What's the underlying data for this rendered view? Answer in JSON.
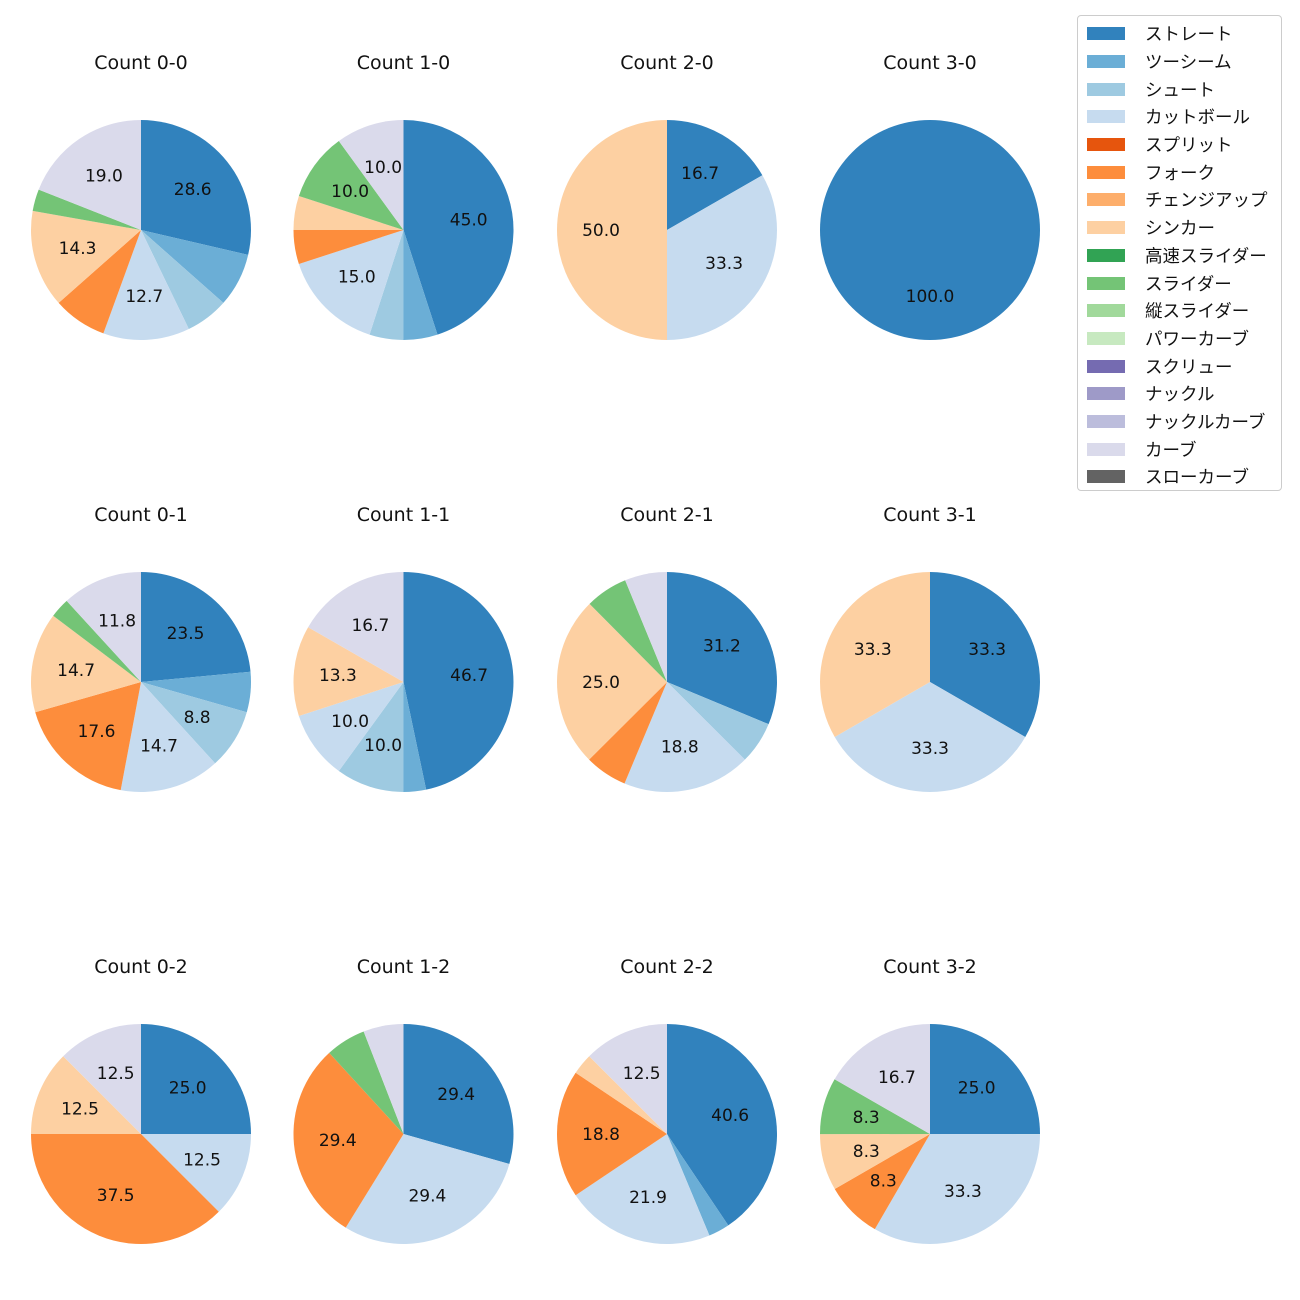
{
  "chart_data": {
    "type": "pie",
    "legend_position": "top-right",
    "legend": [
      {
        "label": "ストレート",
        "color": "#3182bd"
      },
      {
        "label": "ツーシーム",
        "color": "#6baed6"
      },
      {
        "label": "シュート",
        "color": "#9ecae1"
      },
      {
        "label": "カットボール",
        "color": "#c6dbef"
      },
      {
        "label": "スプリット",
        "color": "#e6550d"
      },
      {
        "label": "フォーク",
        "color": "#fd8d3c"
      },
      {
        "label": "チェンジアップ",
        "color": "#fdae6b"
      },
      {
        "label": "シンカー",
        "color": "#fdd0a2"
      },
      {
        "label": "高速スライダー",
        "color": "#31a354"
      },
      {
        "label": "スライダー",
        "color": "#74c476"
      },
      {
        "label": "縦スライダー",
        "color": "#a1d99b"
      },
      {
        "label": "パワーカーブ",
        "color": "#c7e9c0"
      },
      {
        "label": "スクリュー",
        "color": "#756bb1"
      },
      {
        "label": "ナックル",
        "color": "#9e9ac8"
      },
      {
        "label": "ナックルカーブ",
        "color": "#bcbddc"
      },
      {
        "label": "カーブ",
        "color": "#dadaeb"
      },
      {
        "label": "スローカーブ",
        "color": "#636363"
      }
    ],
    "pies": [
      {
        "title": "Count 0-0",
        "slices": [
          {
            "pitch": "ストレート",
            "value": 28.6,
            "label": "28.6"
          },
          {
            "pitch": "ツーシーム",
            "value": 7.9
          },
          {
            "pitch": "シュート",
            "value": 6.3
          },
          {
            "pitch": "カットボール",
            "value": 12.7,
            "label": "12.7"
          },
          {
            "pitch": "フォーク",
            "value": 7.9
          },
          {
            "pitch": "シンカー",
            "value": 14.3,
            "label": "14.3"
          },
          {
            "pitch": "スライダー",
            "value": 3.2
          },
          {
            "pitch": "カーブ",
            "value": 19.0,
            "label": "19.0"
          }
        ]
      },
      {
        "title": "Count 1-0",
        "slices": [
          {
            "pitch": "ストレート",
            "value": 45.0,
            "label": "45.0"
          },
          {
            "pitch": "ツーシーム",
            "value": 5.0
          },
          {
            "pitch": "シュート",
            "value": 5.0
          },
          {
            "pitch": "カットボール",
            "value": 15.0,
            "label": "15.0"
          },
          {
            "pitch": "フォーク",
            "value": 5.0
          },
          {
            "pitch": "シンカー",
            "value": 5.0
          },
          {
            "pitch": "スライダー",
            "value": 10.0,
            "label": "10.0"
          },
          {
            "pitch": "カーブ",
            "value": 10.0,
            "label": "10.0"
          }
        ]
      },
      {
        "title": "Count 2-0",
        "slices": [
          {
            "pitch": "ストレート",
            "value": 16.7,
            "label": "16.7"
          },
          {
            "pitch": "カットボール",
            "value": 33.3,
            "label": "33.3"
          },
          {
            "pitch": "シンカー",
            "value": 50.0,
            "label": "50.0"
          }
        ]
      },
      {
        "title": "Count 3-0",
        "slices": [
          {
            "pitch": "ストレート",
            "value": 100.0,
            "label": "100.0"
          }
        ]
      },
      {
        "title": "Count 0-1",
        "slices": [
          {
            "pitch": "ストレート",
            "value": 23.5,
            "label": "23.5"
          },
          {
            "pitch": "ツーシーム",
            "value": 5.9
          },
          {
            "pitch": "シュート",
            "value": 8.8,
            "label": "8.8"
          },
          {
            "pitch": "カットボール",
            "value": 14.7,
            "label": "14.7"
          },
          {
            "pitch": "フォーク",
            "value": 17.6,
            "label": "17.6"
          },
          {
            "pitch": "シンカー",
            "value": 14.7,
            "label": "14.7"
          },
          {
            "pitch": "スライダー",
            "value": 2.9
          },
          {
            "pitch": "カーブ",
            "value": 11.8,
            "label": "11.8"
          }
        ]
      },
      {
        "title": "Count 1-1",
        "slices": [
          {
            "pitch": "ストレート",
            "value": 46.7,
            "label": "46.7"
          },
          {
            "pitch": "ツーシーム",
            "value": 3.3
          },
          {
            "pitch": "シュート",
            "value": 10.0,
            "label": "10.0"
          },
          {
            "pitch": "カットボール",
            "value": 10.0,
            "label": "10.0"
          },
          {
            "pitch": "シンカー",
            "value": 13.3,
            "label": "13.3"
          },
          {
            "pitch": "カーブ",
            "value": 16.7,
            "label": "16.7"
          }
        ]
      },
      {
        "title": "Count 2-1",
        "slices": [
          {
            "pitch": "ストレート",
            "value": 31.2,
            "label": "31.2"
          },
          {
            "pitch": "シュート",
            "value": 6.2
          },
          {
            "pitch": "カットボール",
            "value": 18.8,
            "label": "18.8"
          },
          {
            "pitch": "フォーク",
            "value": 6.2
          },
          {
            "pitch": "シンカー",
            "value": 25.0,
            "label": "25.0"
          },
          {
            "pitch": "スライダー",
            "value": 6.2
          },
          {
            "pitch": "カーブ",
            "value": 6.2
          }
        ]
      },
      {
        "title": "Count 3-1",
        "slices": [
          {
            "pitch": "ストレート",
            "value": 33.3,
            "label": "33.3"
          },
          {
            "pitch": "カットボール",
            "value": 33.3,
            "label": "33.3"
          },
          {
            "pitch": "シンカー",
            "value": 33.3,
            "label": "33.3"
          }
        ]
      },
      {
        "title": "Count 0-2",
        "slices": [
          {
            "pitch": "ストレート",
            "value": 25.0,
            "label": "25.0"
          },
          {
            "pitch": "カットボール",
            "value": 12.5,
            "label": "12.5"
          },
          {
            "pitch": "フォーク",
            "value": 37.5,
            "label": "37.5"
          },
          {
            "pitch": "シンカー",
            "value": 12.5,
            "label": "12.5"
          },
          {
            "pitch": "カーブ",
            "value": 12.5,
            "label": "12.5"
          }
        ]
      },
      {
        "title": "Count 1-2",
        "slices": [
          {
            "pitch": "ストレート",
            "value": 29.4,
            "label": "29.4"
          },
          {
            "pitch": "カットボール",
            "value": 29.4,
            "label": "29.4"
          },
          {
            "pitch": "フォーク",
            "value": 29.4,
            "label": "29.4"
          },
          {
            "pitch": "スライダー",
            "value": 5.9
          },
          {
            "pitch": "カーブ",
            "value": 5.9
          }
        ]
      },
      {
        "title": "Count 2-2",
        "slices": [
          {
            "pitch": "ストレート",
            "value": 40.6,
            "label": "40.6"
          },
          {
            "pitch": "ツーシーム",
            "value": 3.1
          },
          {
            "pitch": "カットボール",
            "value": 21.9,
            "label": "21.9"
          },
          {
            "pitch": "フォーク",
            "value": 18.8,
            "label": "18.8"
          },
          {
            "pitch": "シンカー",
            "value": 3.1
          },
          {
            "pitch": "カーブ",
            "value": 12.5,
            "label": "12.5"
          }
        ]
      },
      {
        "title": "Count 3-2",
        "slices": [
          {
            "pitch": "ストレート",
            "value": 25.0,
            "label": "25.0"
          },
          {
            "pitch": "カットボール",
            "value": 33.3,
            "label": "33.3"
          },
          {
            "pitch": "フォーク",
            "value": 8.3,
            "label": "8.3"
          },
          {
            "pitch": "シンカー",
            "value": 8.3,
            "label": "8.3"
          },
          {
            "pitch": "スライダー",
            "value": 8.3,
            "label": "8.3"
          },
          {
            "pitch": "カーブ",
            "value": 16.7,
            "label": "16.7"
          }
        ]
      }
    ]
  }
}
